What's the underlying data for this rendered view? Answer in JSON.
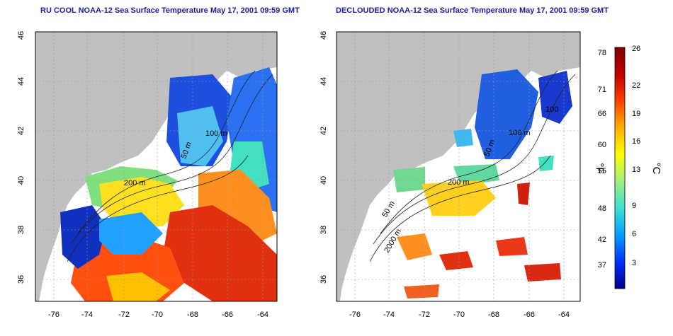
{
  "panels": [
    {
      "title": "RU COOL NOAA-12 Sea Surface Temperature May 17, 2001 09:59 GMT"
    },
    {
      "title": "DECLOUDED NOAA-12 Sea Surface Temperature May 17, 2001 09:59 GMT"
    }
  ],
  "axes": {
    "x_ticks": [
      "-76",
      "-74",
      "-72",
      "-70",
      "-68",
      "-66",
      "-64"
    ],
    "y_ticks": [
      "36",
      "38",
      "40",
      "42",
      "44",
      "46"
    ]
  },
  "contour_labels": {
    "left": [
      "200 m",
      "100 m",
      "50 m"
    ],
    "right": [
      "200 m",
      "100 m",
      "50 m",
      "100",
      "50 m",
      "2000 m"
    ]
  },
  "colorbar": {
    "celsius_ticks": [
      "26",
      "22",
      "19",
      "16",
      "13",
      "9",
      "6",
      "3"
    ],
    "fahrenheit_ticks": [
      "78",
      "71",
      "66",
      "60",
      "55",
      "48",
      "42",
      "37"
    ],
    "fahrenheit_label": "°F",
    "celsius_label": "°C",
    "colors": [
      "#00008b",
      "#0030ff",
      "#00a0ff",
      "#40e0d0",
      "#a0f080",
      "#ffff00",
      "#ffb000",
      "#ff4000",
      "#c00000",
      "#800000"
    ]
  },
  "colors": {
    "land": "#c0c0c0",
    "ocean_clear": "#ffffff",
    "title": "#1a1aa0",
    "grid": "#999999"
  }
}
